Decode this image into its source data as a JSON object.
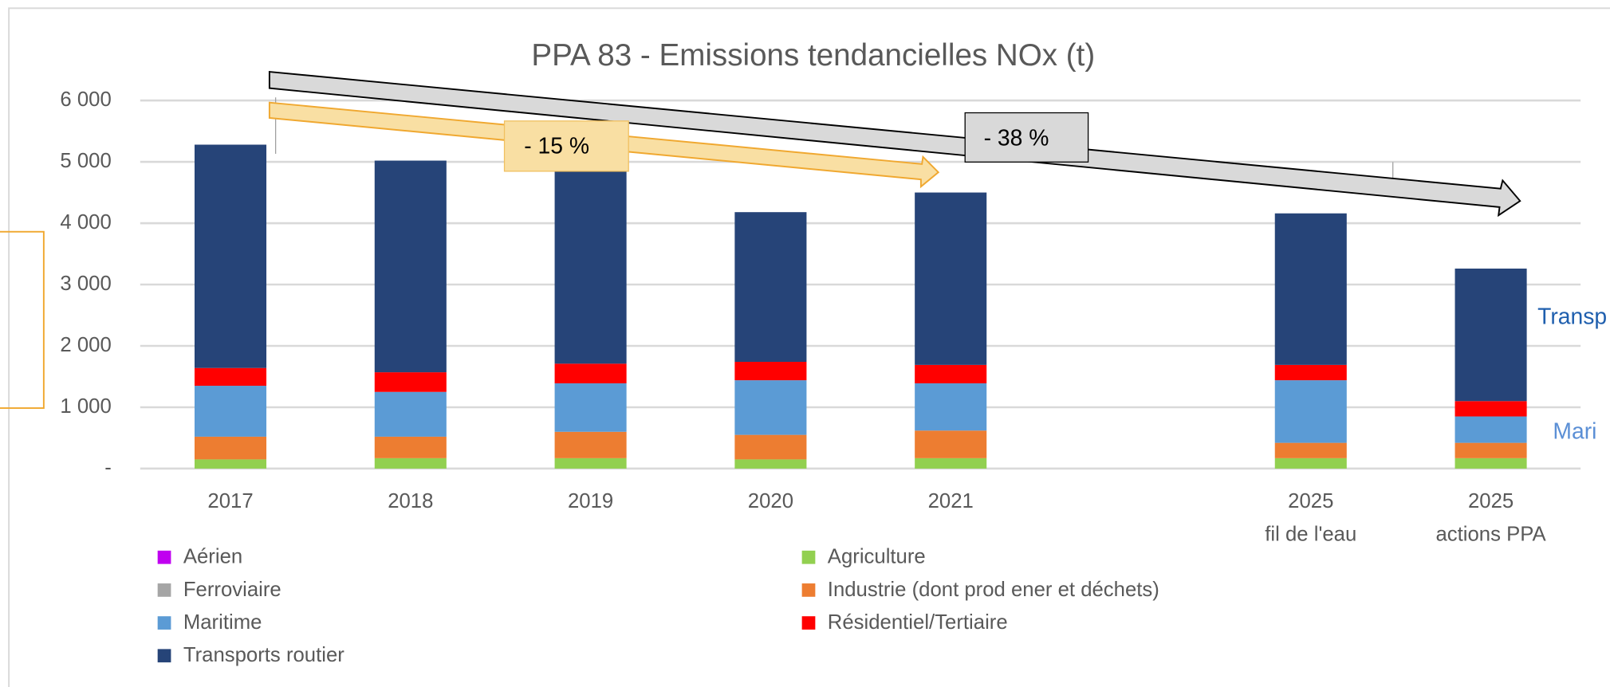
{
  "chart_data": {
    "type": "bar",
    "stacked": true,
    "title": "PPA 83 - Emissions tendancielles NOx (t)",
    "categories": [
      "2017",
      "2018",
      "2019",
      "2020",
      "2021",
      null,
      [
        "2025",
        "fil de l'eau"
      ],
      [
        "2025",
        "actions PPA"
      ]
    ],
    "series": [
      {
        "name": "Aérien",
        "color": "#c000f0",
        "values": [
          0,
          0,
          0,
          0,
          0,
          null,
          0,
          0
        ]
      },
      {
        "name": "Agriculture",
        "color": "#92d050",
        "values": [
          150,
          170,
          170,
          150,
          170,
          null,
          170,
          170
        ]
      },
      {
        "name": "Ferroviaire",
        "color": "#a5a5a5",
        "values": [
          0,
          0,
          0,
          0,
          0,
          null,
          0,
          0
        ]
      },
      {
        "name": "Industrie (dont prod  ener et déchets)",
        "color": "#ed7d31",
        "values": [
          370,
          350,
          430,
          400,
          450,
          null,
          250,
          250
        ]
      },
      {
        "name": "Maritime",
        "color": "#5b9bd5",
        "values": [
          830,
          730,
          790,
          890,
          770,
          null,
          1020,
          430
        ]
      },
      {
        "name": "Résidentiel/Tertiaire",
        "color": "#ff0000",
        "values": [
          290,
          320,
          320,
          300,
          300,
          null,
          250,
          250
        ]
      },
      {
        "name": "Transports routier",
        "color": "#264478",
        "values": [
          3640,
          3450,
          3290,
          2440,
          2810,
          null,
          2470,
          2160
        ]
      }
    ],
    "ylim": [
      0,
      6000
    ],
    "yticks": [
      {
        "value": 0,
        "label": "-"
      },
      {
        "value": 1000,
        "label": "1 000"
      },
      {
        "value": 2000,
        "label": "2 000"
      },
      {
        "value": 3000,
        "label": "3 000"
      },
      {
        "value": 4000,
        "label": "4 000"
      },
      {
        "value": 5000,
        "label": "5 000"
      },
      {
        "value": 6000,
        "label": "6 000"
      }
    ],
    "grid": true,
    "annotations": [
      "- 15 %",
      "- 38 %",
      "Transp",
      "Mari"
    ]
  }
}
